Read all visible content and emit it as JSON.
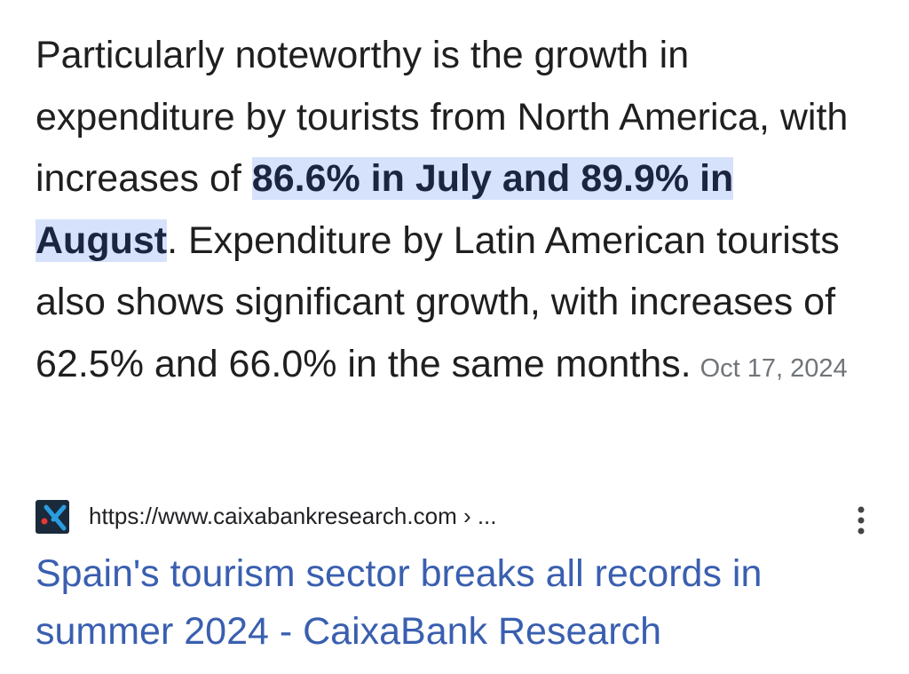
{
  "snippet": {
    "text_before": "Particularly noteworthy is the growth in expenditure by tourists from North America, with increases of ",
    "highlight": "86.6% in July and 89.9% in August",
    "text_after": ". Expenditure by Latin American tourists also shows significant growth, with increases of 62.5% and 66.0% in the same months.",
    "date": "Oct 17, 2024"
  },
  "result": {
    "url": "https://www.caixabankresearch.com › ...",
    "title": "Spain's tourism sector breaks all records in summer 2024 - CaixaBank Research"
  }
}
